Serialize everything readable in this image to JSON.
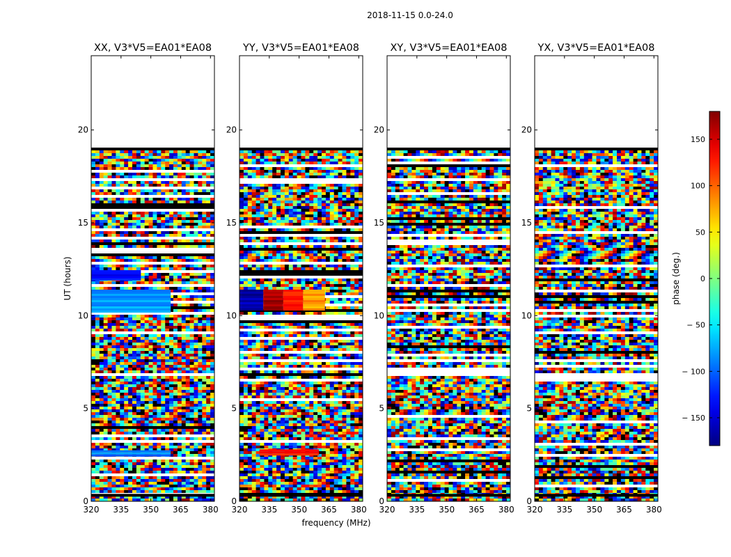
{
  "suptitle": "2018-11-15 0.0-24.0",
  "chart_data": {
    "type": "heatmap",
    "ylabel": "UT (hours)",
    "xlabel": "frequency (MHz)",
    "xlim": [
      320,
      382
    ],
    "ylim": [
      0,
      24
    ],
    "xticks": [
      320,
      335,
      350,
      365,
      380
    ],
    "yticks": [
      0,
      5,
      10,
      15,
      20
    ],
    "data_end_hour": 18.9,
    "panels": [
      {
        "title": "XX, V3*V5=EA01*EA08",
        "coherent_blocks": [
          {
            "t0": 10.25,
            "t1": 11.4,
            "f0": 320,
            "f1": 360,
            "phase": -80
          },
          {
            "t0": 11.95,
            "t1": 12.45,
            "f0": 320,
            "f1": 345,
            "phase": -130
          },
          {
            "t0": 2.5,
            "t1": 2.75,
            "f0": 320,
            "f1": 360,
            "phase": -90
          }
        ]
      },
      {
        "title": "YY, V3*V5=EA01*EA08",
        "coherent_blocks": [
          {
            "t0": 10.3,
            "t1": 11.4,
            "f0": 320,
            "f1": 332,
            "phase": -165
          },
          {
            "t0": 10.3,
            "t1": 11.4,
            "f0": 332,
            "f1": 342,
            "phase": 165
          },
          {
            "t0": 10.3,
            "t1": 11.4,
            "f0": 342,
            "f1": 352,
            "phase": 130
          },
          {
            "t0": 10.3,
            "t1": 11.4,
            "f0": 352,
            "f1": 363,
            "phase": 80
          },
          {
            "t0": 2.5,
            "t1": 2.8,
            "f0": 330,
            "f1": 360,
            "phase": 130
          }
        ]
      },
      {
        "title": "XY, V3*V5=EA01*EA08",
        "coherent_blocks": []
      },
      {
        "title": "YX, V3*V5=EA01*EA08",
        "coherent_blocks": []
      }
    ],
    "colorbar": {
      "label": "phase (deg.)",
      "range": [
        -180,
        180
      ],
      "ticks": [
        150,
        100,
        50,
        0,
        -50,
        -100,
        -150
      ],
      "tick_labels": [
        "150",
        "100",
        "50",
        "0",
        "− 50",
        "− 100",
        "− 150"
      ],
      "colormap": "jet"
    }
  }
}
